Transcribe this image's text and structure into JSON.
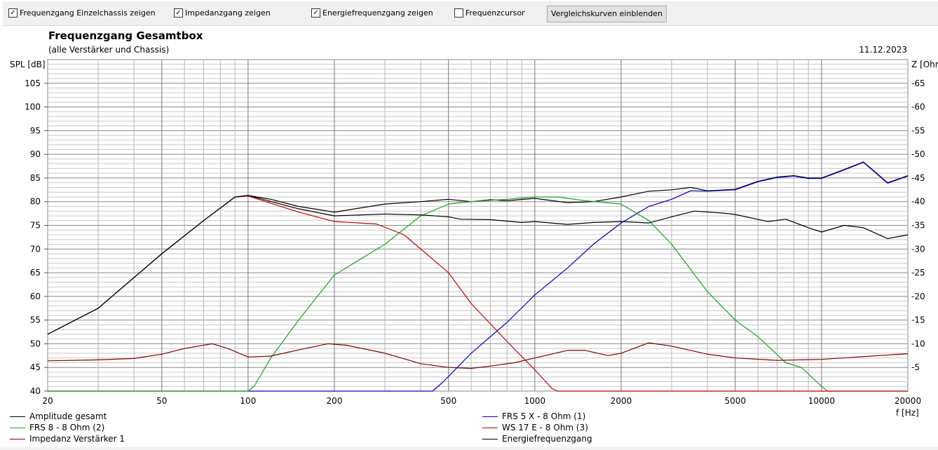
{
  "toolbar": {
    "checkboxes": [
      {
        "label": "Frequenzgang Einzelchassis zeigen",
        "checked": true
      },
      {
        "label": "Impedanzgang zeigen",
        "checked": true
      },
      {
        "label": "Energiefrequenzgang zeigen",
        "checked": true
      },
      {
        "label": "Frequenzcursor",
        "checked": false
      }
    ],
    "compare_button": "Vergleichskurven einblenden"
  },
  "chart_data": {
    "type": "line",
    "title": "Frequenzgang Gesamtbox",
    "subtitle": "(alle Verstärker und Chassis)",
    "date": "11.12.2023",
    "ylabel": "SPL [dB]",
    "y2label": "Z [Ohm]",
    "xlabel": "f [Hz]",
    "xscale": "log",
    "xlim": [
      20,
      20000
    ],
    "ylim": [
      40,
      110
    ],
    "y2lim": [
      0,
      70
    ],
    "xticks": [
      "20",
      "50",
      "100",
      "200",
      "500",
      "1000",
      "2000",
      "5000",
      "10000",
      "20000"
    ],
    "yticks": [
      "40",
      "45",
      "50",
      "55",
      "60",
      "65",
      "70",
      "75",
      "80",
      "85",
      "90",
      "95",
      "100",
      "105"
    ],
    "y2ticks": [
      "5",
      "10",
      "15",
      "20",
      "25",
      "30",
      "35",
      "40",
      "45",
      "50",
      "55",
      "60",
      "65"
    ],
    "grid": true,
    "legend_position": "bottom",
    "series": [
      {
        "name": "Amplitude gesamt",
        "color": "#000000",
        "axis": "left",
        "points": [
          [
            20,
            52
          ],
          [
            30,
            57.5
          ],
          [
            50,
            69
          ],
          [
            70,
            76
          ],
          [
            90,
            81
          ],
          [
            100,
            81.3
          ],
          [
            120,
            80.5
          ],
          [
            150,
            79
          ],
          [
            200,
            77.8
          ],
          [
            300,
            79.5
          ],
          [
            400,
            80
          ],
          [
            500,
            80.5
          ],
          [
            600,
            80
          ],
          [
            700,
            80.4
          ],
          [
            800,
            80.2
          ],
          [
            1000,
            80.7
          ],
          [
            1300,
            79.8
          ],
          [
            1600,
            80
          ],
          [
            2000,
            81
          ],
          [
            2500,
            82.2
          ],
          [
            3000,
            82.5
          ],
          [
            3500,
            83
          ],
          [
            4000,
            82.3
          ],
          [
            5000,
            82.6
          ],
          [
            6000,
            84.3
          ],
          [
            7000,
            85.2
          ],
          [
            8000,
            85.5
          ],
          [
            9000,
            85
          ],
          [
            10000,
            85
          ],
          [
            12000,
            86.8
          ],
          [
            14000,
            88.4
          ],
          [
            17000,
            84
          ],
          [
            20000,
            85.5
          ]
        ]
      },
      {
        "name": "FRS 5 X - 8 Ohm (1)",
        "color": "#0000c0",
        "axis": "left",
        "points": [
          [
            20,
            40
          ],
          [
            440,
            40
          ],
          [
            480,
            42
          ],
          [
            600,
            48
          ],
          [
            800,
            54.5
          ],
          [
            1000,
            60.3
          ],
          [
            1300,
            66
          ],
          [
            1600,
            71
          ],
          [
            2000,
            75.5
          ],
          [
            2500,
            79
          ],
          [
            3000,
            80.5
          ],
          [
            3500,
            82.3
          ],
          [
            4000,
            82.2
          ],
          [
            5000,
            82.5
          ],
          [
            6000,
            84.2
          ],
          [
            7000,
            85.1
          ],
          [
            8000,
            85.4
          ],
          [
            9000,
            84.9
          ],
          [
            10000,
            84.9
          ],
          [
            12000,
            86.7
          ],
          [
            14000,
            88.3
          ],
          [
            17000,
            83.9
          ],
          [
            20000,
            85.4
          ]
        ]
      },
      {
        "name": "FRS 8 - 8 Ohm (2)",
        "color": "#20a020",
        "axis": "left",
        "points": [
          [
            20,
            40
          ],
          [
            100,
            40
          ],
          [
            105,
            41
          ],
          [
            120,
            47
          ],
          [
            150,
            55
          ],
          [
            200,
            64.5
          ],
          [
            300,
            71
          ],
          [
            400,
            77
          ],
          [
            500,
            79.5
          ],
          [
            600,
            80
          ],
          [
            800,
            80.5
          ],
          [
            1000,
            81
          ],
          [
            1200,
            81
          ],
          [
            1500,
            80.2
          ],
          [
            2000,
            79.5
          ],
          [
            2500,
            76
          ],
          [
            3000,
            71
          ],
          [
            4000,
            61
          ],
          [
            5000,
            55
          ],
          [
            6000,
            51.5
          ],
          [
            7500,
            46
          ],
          [
            8500,
            45
          ],
          [
            10000,
            41
          ],
          [
            10500,
            40
          ],
          [
            20000,
            40
          ]
        ]
      },
      {
        "name": "WS 17 E - 8 Ohm   (3)",
        "color": "#c00000",
        "axis": "left",
        "points": [
          [
            20,
            52
          ],
          [
            30,
            57.5
          ],
          [
            50,
            69
          ],
          [
            70,
            76
          ],
          [
            90,
            81
          ],
          [
            100,
            81.2
          ],
          [
            150,
            77.8
          ],
          [
            200,
            75.8
          ],
          [
            280,
            75.3
          ],
          [
            350,
            73
          ],
          [
            500,
            65
          ],
          [
            600,
            58.5
          ],
          [
            800,
            50.5
          ],
          [
            1000,
            44.5
          ],
          [
            1150,
            40.5
          ],
          [
            1200,
            40
          ],
          [
            20000,
            40
          ]
        ]
      },
      {
        "name": "Impedanz Verstärker 1",
        "color": "#800000",
        "axis": "right",
        "points": [
          [
            20,
            6.4
          ],
          [
            30,
            6.6
          ],
          [
            40,
            6.9
          ],
          [
            50,
            7.8
          ],
          [
            60,
            9
          ],
          [
            75,
            10
          ],
          [
            85,
            9
          ],
          [
            100,
            7.2
          ],
          [
            120,
            7.4
          ],
          [
            150,
            8.7
          ],
          [
            190,
            10
          ],
          [
            220,
            9.7
          ],
          [
            300,
            8
          ],
          [
            400,
            5.8
          ],
          [
            500,
            5
          ],
          [
            600,
            4.8
          ],
          [
            700,
            5.3
          ],
          [
            850,
            6
          ],
          [
            1000,
            7
          ],
          [
            1300,
            8.6
          ],
          [
            1500,
            8.6
          ],
          [
            1800,
            7.5
          ],
          [
            2000,
            8
          ],
          [
            2500,
            10.2
          ],
          [
            3000,
            9.5
          ],
          [
            4000,
            7.8
          ],
          [
            5000,
            7
          ],
          [
            7000,
            6.5
          ],
          [
            10000,
            6.7
          ],
          [
            20000,
            7.9
          ]
        ]
      },
      {
        "name": "Energiefrequenzgang",
        "color": "#000000",
        "axis": "left",
        "points": [
          [
            20,
            52
          ],
          [
            30,
            57.5
          ],
          [
            50,
            69
          ],
          [
            70,
            76
          ],
          [
            90,
            81
          ],
          [
            100,
            81.3
          ],
          [
            150,
            78.5
          ],
          [
            200,
            77
          ],
          [
            300,
            77.4
          ],
          [
            400,
            77.2
          ],
          [
            500,
            76.8
          ],
          [
            550,
            76.3
          ],
          [
            700,
            76.2
          ],
          [
            900,
            75.6
          ],
          [
            1000,
            75.8
          ],
          [
            1300,
            75.2
          ],
          [
            1600,
            75.6
          ],
          [
            2000,
            75.8
          ],
          [
            2500,
            75.5
          ],
          [
            3000,
            76.8
          ],
          [
            3600,
            78
          ],
          [
            4500,
            77.6
          ],
          [
            5000,
            77.3
          ],
          [
            6500,
            75.8
          ],
          [
            7500,
            76.3
          ],
          [
            9000,
            74.5
          ],
          [
            10000,
            73.6
          ],
          [
            12000,
            75
          ],
          [
            14000,
            74.5
          ],
          [
            17000,
            72.2
          ],
          [
            20000,
            73
          ]
        ]
      }
    ]
  }
}
